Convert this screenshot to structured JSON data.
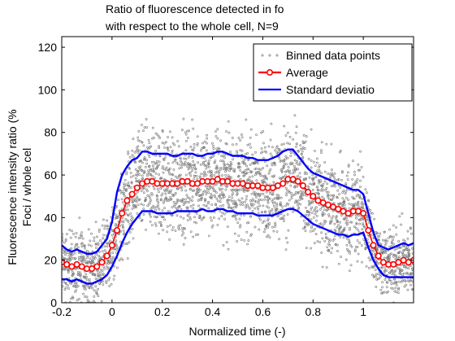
{
  "chart_data": {
    "type": "line",
    "title": [
      "Ratio of fluorescence detected in fo",
      "with respect to the whole cell, N=9"
    ],
    "xlabel": "Normalized time (-)",
    "ylabel": [
      "Fluorescence intensity ratio (%",
      "Foci / whole cel"
    ],
    "xlim": [
      -0.2,
      1.2
    ],
    "ylim": [
      0,
      125
    ],
    "xticks": [
      "-0.2",
      "0",
      "0.2",
      "0.4",
      "0.6",
      "0.8",
      "1"
    ],
    "yticks": [
      "0",
      "20",
      "40",
      "60",
      "80",
      "100",
      "120"
    ],
    "grid": false,
    "legend_position": "top-right",
    "legend": [
      {
        "label": "Binned data points",
        "style": "dots",
        "color": "#7a7a7a"
      },
      {
        "label": "Average",
        "style": "line-circle",
        "color": "#ff0000"
      },
      {
        "label": "Standard deviatio",
        "style": "line",
        "color": "#0000ff"
      }
    ],
    "scatter_band": {
      "name": "Binned data points",
      "color": "#7a7a7a",
      "x": [
        -0.2,
        -0.1,
        -0.05,
        0.0,
        0.05,
        0.1,
        0.2,
        0.3,
        0.4,
        0.5,
        0.6,
        0.7,
        0.75,
        0.8,
        0.9,
        0.95,
        1.0,
        1.05,
        1.1,
        1.2
      ],
      "low": [
        0,
        0,
        0,
        5,
        12,
        22,
        25,
        25,
        25,
        25,
        25,
        25,
        24,
        18,
        15,
        15,
        10,
        5,
        0,
        0
      ],
      "high": [
        45,
        42,
        42,
        50,
        70,
        85,
        88,
        88,
        88,
        86,
        86,
        88,
        88,
        82,
        76,
        75,
        70,
        45,
        42,
        42
      ]
    },
    "series": [
      {
        "name": "Average",
        "color": "#ff0000",
        "marker": "circle",
        "x": [
          -0.2,
          -0.18,
          -0.16,
          -0.14,
          -0.12,
          -0.1,
          -0.08,
          -0.06,
          -0.04,
          -0.02,
          0.0,
          0.02,
          0.04,
          0.06,
          0.08,
          0.1,
          0.12,
          0.14,
          0.16,
          0.18,
          0.2,
          0.22,
          0.24,
          0.26,
          0.28,
          0.3,
          0.32,
          0.34,
          0.36,
          0.38,
          0.4,
          0.42,
          0.44,
          0.46,
          0.48,
          0.5,
          0.52,
          0.54,
          0.56,
          0.58,
          0.6,
          0.62,
          0.64,
          0.66,
          0.68,
          0.7,
          0.72,
          0.74,
          0.76,
          0.78,
          0.8,
          0.82,
          0.84,
          0.86,
          0.88,
          0.9,
          0.92,
          0.94,
          0.96,
          0.98,
          1.0,
          1.02,
          1.04,
          1.06,
          1.08,
          1.1,
          1.12,
          1.14,
          1.16,
          1.18,
          1.2
        ],
        "values": [
          19,
          18,
          17,
          18,
          17,
          16,
          16,
          17,
          19,
          22,
          27,
          34,
          42,
          48,
          51,
          54,
          56,
          57,
          57,
          56,
          56,
          56,
          56,
          56,
          57,
          57,
          56,
          56,
          57,
          57,
          57,
          58,
          57,
          57,
          56,
          56,
          56,
          55,
          55,
          55,
          54,
          54,
          54,
          55,
          56,
          58,
          58,
          57,
          55,
          52,
          50,
          48,
          47,
          46,
          45,
          44,
          43,
          42,
          43,
          43,
          42,
          34,
          27,
          22,
          19,
          18,
          18,
          19,
          20,
          19,
          20
        ]
      },
      {
        "name": "Standard deviation (upper)",
        "color": "#0000ff",
        "marker": "none",
        "x": [
          -0.2,
          -0.18,
          -0.16,
          -0.14,
          -0.12,
          -0.1,
          -0.08,
          -0.06,
          -0.04,
          -0.02,
          0.0,
          0.02,
          0.04,
          0.06,
          0.08,
          0.1,
          0.12,
          0.14,
          0.16,
          0.18,
          0.2,
          0.22,
          0.24,
          0.26,
          0.28,
          0.3,
          0.32,
          0.34,
          0.36,
          0.38,
          0.4,
          0.42,
          0.44,
          0.46,
          0.48,
          0.5,
          0.52,
          0.54,
          0.56,
          0.58,
          0.6,
          0.62,
          0.64,
          0.66,
          0.68,
          0.7,
          0.72,
          0.74,
          0.76,
          0.78,
          0.8,
          0.82,
          0.84,
          0.86,
          0.88,
          0.9,
          0.92,
          0.94,
          0.96,
          0.98,
          1.0,
          1.02,
          1.04,
          1.06,
          1.08,
          1.1,
          1.12,
          1.14,
          1.16,
          1.18,
          1.2
        ],
        "values": [
          27,
          25,
          24,
          25,
          24,
          23,
          23,
          24,
          27,
          30,
          38,
          52,
          60,
          64,
          67,
          68,
          71,
          71,
          70,
          70,
          70,
          70,
          69,
          69,
          70,
          70,
          70,
          69,
          69,
          70,
          70,
          71,
          71,
          70,
          69,
          69,
          69,
          68,
          68,
          67,
          67,
          67,
          68,
          69,
          71,
          72,
          72,
          69,
          66,
          63,
          61,
          60,
          59,
          58,
          57,
          56,
          55,
          54,
          53,
          53,
          51,
          42,
          33,
          27,
          26,
          25,
          26,
          27,
          28,
          27,
          28
        ]
      },
      {
        "name": "Standard deviation (lower)",
        "color": "#0000ff",
        "marker": "none",
        "x": [
          -0.2,
          -0.18,
          -0.16,
          -0.14,
          -0.12,
          -0.1,
          -0.08,
          -0.06,
          -0.04,
          -0.02,
          0.0,
          0.02,
          0.04,
          0.06,
          0.08,
          0.1,
          0.12,
          0.14,
          0.16,
          0.18,
          0.2,
          0.22,
          0.24,
          0.26,
          0.28,
          0.3,
          0.32,
          0.34,
          0.36,
          0.38,
          0.4,
          0.42,
          0.44,
          0.46,
          0.48,
          0.5,
          0.52,
          0.54,
          0.56,
          0.58,
          0.6,
          0.62,
          0.64,
          0.66,
          0.68,
          0.7,
          0.72,
          0.74,
          0.76,
          0.78,
          0.8,
          0.82,
          0.84,
          0.86,
          0.88,
          0.9,
          0.92,
          0.94,
          0.96,
          0.98,
          1.0,
          1.02,
          1.04,
          1.06,
          1.08,
          1.1,
          1.12,
          1.14,
          1.16,
          1.18,
          1.2
        ],
        "values": [
          11,
          11,
          10,
          11,
          10,
          9,
          9,
          10,
          11,
          13,
          17,
          22,
          28,
          33,
          37,
          40,
          43,
          43,
          43,
          42,
          42,
          42,
          42,
          43,
          43,
          43,
          43,
          43,
          44,
          43,
          43,
          44,
          44,
          43,
          43,
          42,
          42,
          42,
          42,
          41,
          41,
          41,
          41,
          42,
          43,
          44,
          44,
          43,
          41,
          39,
          37,
          36,
          35,
          34,
          33,
          32,
          32,
          31,
          32,
          32,
          33,
          26,
          20,
          16,
          13,
          12,
          12,
          12,
          12,
          12,
          12
        ]
      }
    ]
  }
}
